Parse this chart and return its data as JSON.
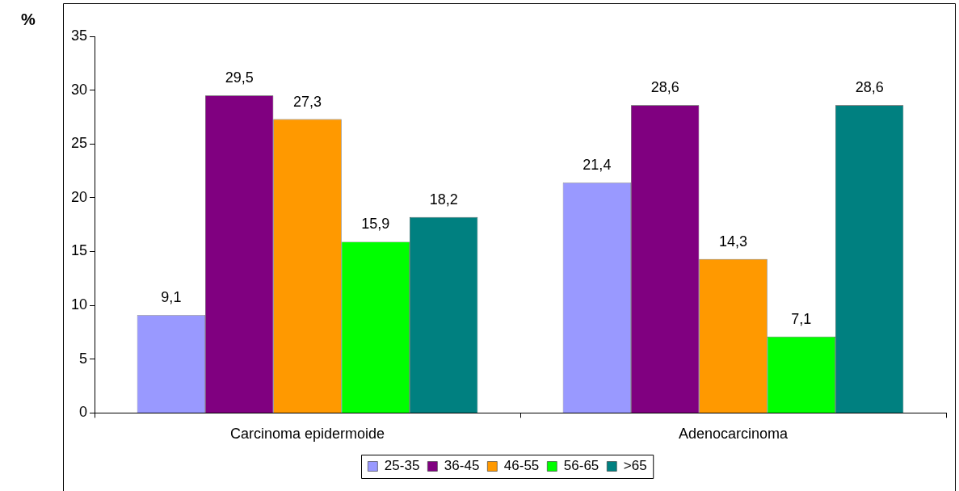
{
  "chart_data": {
    "type": "bar",
    "ylabel": "%",
    "categories": [
      "Carcinoma epidermoide",
      "Adenocarcinoma"
    ],
    "series": [
      {
        "name": "25-35",
        "color": "#9999ff",
        "values": [
          9.1,
          21.4
        ],
        "value_labels": [
          "9,1",
          "21,4"
        ]
      },
      {
        "name": "36-45",
        "color": "#800080",
        "values": [
          29.5,
          28.6
        ],
        "value_labels": [
          "29,5",
          "28,6"
        ]
      },
      {
        "name": "46-55",
        "color": "#ff9900",
        "values": [
          27.3,
          14.3
        ],
        "value_labels": [
          "27,3",
          "14,3"
        ]
      },
      {
        "name": "56-65",
        "color": "#00ff00",
        "values": [
          15.9,
          7.1
        ],
        "value_labels": [
          "15,9",
          "7,1"
        ]
      },
      {
        "name": ">65",
        "color": "#008080",
        "values": [
          18.2,
          28.6
        ],
        "value_labels": [
          "18,2",
          "28,6"
        ]
      }
    ],
    "ylim": [
      0,
      35
    ],
    "yticks": [
      0,
      5,
      10,
      15,
      20,
      25,
      30,
      35
    ],
    "grid": false,
    "legend": "bottom"
  }
}
